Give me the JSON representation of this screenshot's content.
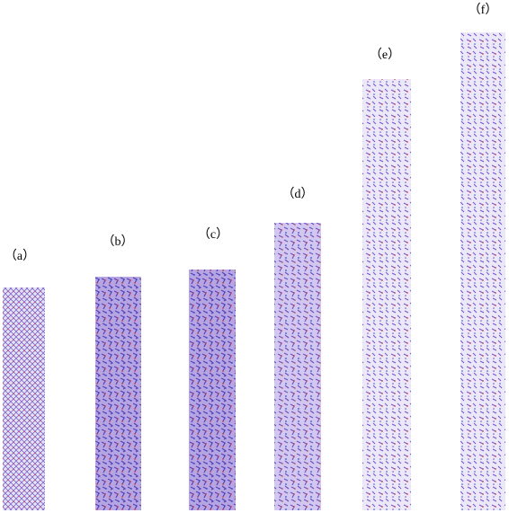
{
  "panels": [
    {
      "label": "（a）"
    },
    {
      "label": "（b）"
    },
    {
      "label": "（c）"
    },
    {
      "label": "（d）"
    },
    {
      "label": "（e）"
    },
    {
      "label": "（f）"
    }
  ]
}
